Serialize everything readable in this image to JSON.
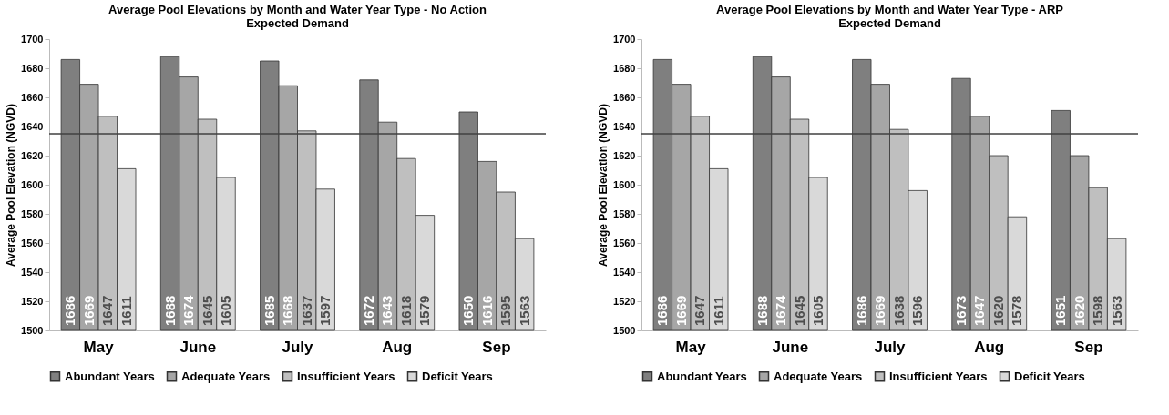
{
  "chart_data": [
    {
      "type": "bar",
      "title": "Average Pool Elevations by Month and Water Year Type - No Action",
      "subtitle": "Expected Demand",
      "ylabel": "Average Pool Elevation (NGVD)",
      "categories": [
        "May",
        "June",
        "July",
        "Aug",
        "Sep"
      ],
      "series": [
        {
          "name": "Abundant Years",
          "color": "#7f7f7f",
          "values": [
            1686,
            1688,
            1685,
            1672,
            1650
          ]
        },
        {
          "name": "Adequate Years",
          "color": "#a6a6a6",
          "values": [
            1669,
            1674,
            1668,
            1643,
            1616
          ]
        },
        {
          "name": "Insufficient Years",
          "color": "#bfbfbf",
          "values": [
            1647,
            1645,
            1637,
            1618,
            1595
          ]
        },
        {
          "name": "Deficit Years",
          "color": "#d9d9d9",
          "values": [
            1611,
            1605,
            1597,
            1579,
            1563
          ]
        }
      ],
      "ylim": [
        1500,
        1700
      ],
      "yticks": [
        1500,
        1520,
        1540,
        1560,
        1580,
        1600,
        1620,
        1640,
        1660,
        1680,
        1700
      ],
      "data_labels": true,
      "legend": "bottom",
      "grid": false,
      "ref_lines": [
        {
          "axis": "y",
          "value": 1635,
          "color": "#404040"
        }
      ]
    },
    {
      "type": "bar",
      "title": "Average Pool Elevations by Month and Water Year Type - ARP",
      "subtitle": "Expected Demand",
      "ylabel": "Average Pool Elevation (NGVD)",
      "categories": [
        "May",
        "June",
        "July",
        "Aug",
        "Sep"
      ],
      "series": [
        {
          "name": "Abundant Years",
          "color": "#7f7f7f",
          "values": [
            1686,
            1688,
            1686,
            1673,
            1651
          ]
        },
        {
          "name": "Adequate Years",
          "color": "#a6a6a6",
          "values": [
            1669,
            1674,
            1669,
            1647,
            1620
          ]
        },
        {
          "name": "Insufficient Years",
          "color": "#bfbfbf",
          "values": [
            1647,
            1645,
            1638,
            1620,
            1598
          ]
        },
        {
          "name": "Deficit Years",
          "color": "#d9d9d9",
          "values": [
            1611,
            1605,
            1596,
            1578,
            1563
          ]
        }
      ],
      "ylim": [
        1500,
        1700
      ],
      "yticks": [
        1500,
        1520,
        1540,
        1560,
        1580,
        1600,
        1620,
        1640,
        1660,
        1680,
        1700
      ],
      "data_labels": true,
      "legend": "bottom",
      "grid": false,
      "ref_lines": [
        {
          "axis": "y",
          "value": 1635,
          "color": "#404040"
        }
      ]
    }
  ]
}
